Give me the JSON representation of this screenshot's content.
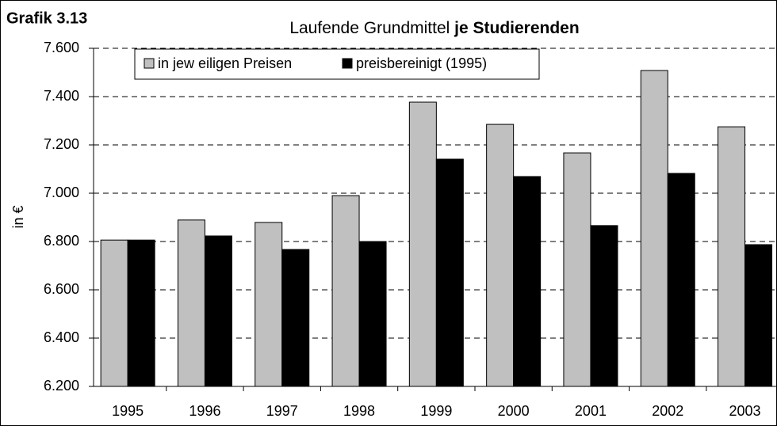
{
  "chart_data": {
    "type": "bar",
    "label": "Grafik 3.13",
    "title_parts": [
      "Laufende Grundmittel",
      "je Studierenden"
    ],
    "ylabel": "in €",
    "categories": [
      "1995",
      "1996",
      "1997",
      "1998",
      "1999",
      "2000",
      "2001",
      "2002",
      "2003"
    ],
    "series": [
      {
        "name": "in jew eiligen Preisen",
        "color": "#c0c0c0",
        "values": [
          6806,
          6889,
          6879,
          6990,
          7377,
          7285,
          7167,
          7508,
          7275
        ]
      },
      {
        "name": "preisbereinigt (1995)",
        "color": "#000000",
        "values": [
          6806,
          6823,
          6767,
          6800,
          7141,
          7069,
          6866,
          7082,
          6787
        ]
      }
    ],
    "ylim": [
      6200,
      7600
    ],
    "yticks": [
      {
        "value": 6200,
        "label": "6.200"
      },
      {
        "value": 6400,
        "label": "6.400"
      },
      {
        "value": 6600,
        "label": "6.600"
      },
      {
        "value": 6800,
        "label": "6.800"
      },
      {
        "value": 7000,
        "label": "7.000"
      },
      {
        "value": 7200,
        "label": "7.200"
      },
      {
        "value": 7400,
        "label": "7.400"
      },
      {
        "value": 7600,
        "label": "7.600"
      }
    ],
    "grid": true,
    "legend": "top-left"
  }
}
